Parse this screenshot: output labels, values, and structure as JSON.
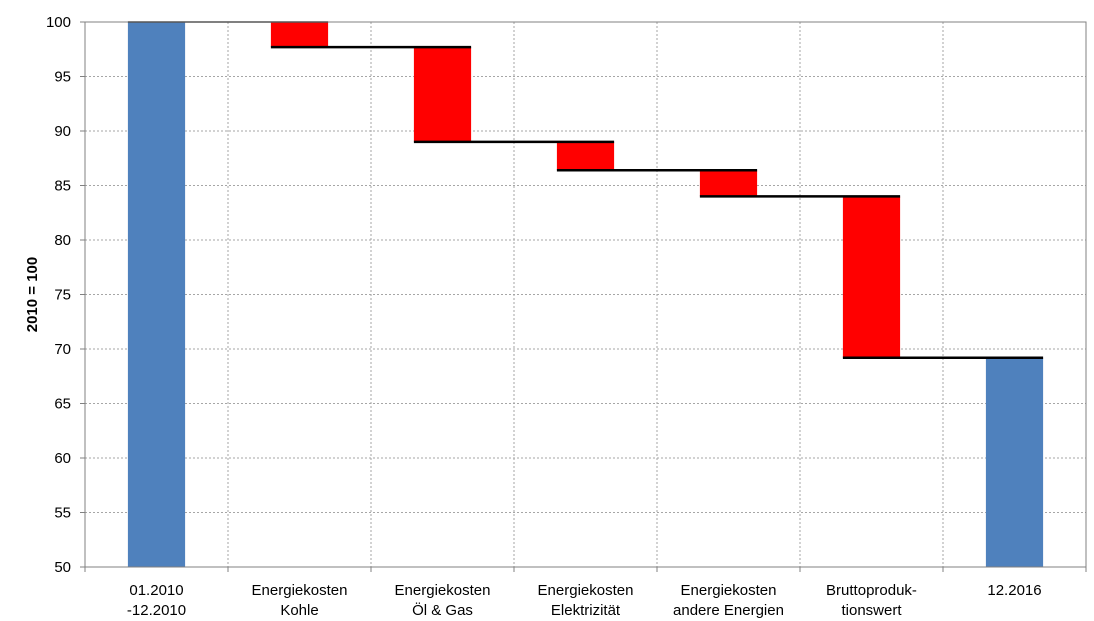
{
  "chart_data": {
    "type": "bar",
    "subtype": "waterfall",
    "categories": [
      [
        "01.2010",
        "-12.2010"
      ],
      [
        "Energiekosten",
        "Kohle"
      ],
      [
        "Energiekosten",
        "Öl & Gas"
      ],
      [
        "Energiekosten",
        "Elektrizität"
      ],
      [
        "Energiekosten",
        "andere Energien"
      ],
      [
        "Bruttoproduk-",
        "tionswert"
      ],
      [
        "12.2016"
      ]
    ],
    "bars": [
      {
        "kind": "total",
        "start": 50,
        "end": 100
      },
      {
        "kind": "decrease",
        "start": 100,
        "end": 97.7
      },
      {
        "kind": "decrease",
        "start": 97.7,
        "end": 89.0
      },
      {
        "kind": "decrease",
        "start": 89.0,
        "end": 86.4
      },
      {
        "kind": "decrease",
        "start": 86.4,
        "end": 84.0
      },
      {
        "kind": "decrease",
        "start": 84.0,
        "end": 69.2
      },
      {
        "kind": "total",
        "start": 50,
        "end": 69.2
      }
    ],
    "ylabel": "2010 = 100",
    "xlabel": "",
    "title": "",
    "ylim": [
      50,
      100
    ],
    "yticks": [
      50,
      55,
      60,
      65,
      70,
      75,
      80,
      85,
      90,
      95,
      100
    ],
    "grid": true,
    "colors": {
      "total": "#4f81bd",
      "decrease": "#ff0000",
      "connector": "#000000",
      "grid": "#a6a6a6"
    }
  }
}
